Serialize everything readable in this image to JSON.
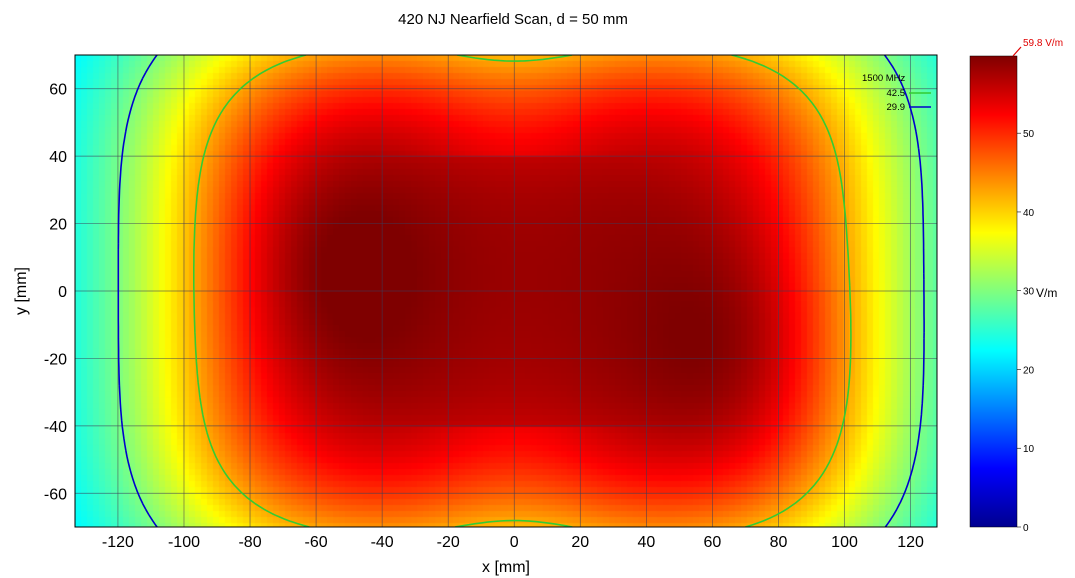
{
  "chart_data": {
    "type": "heatmap",
    "title": "420 NJ Nearfield Scan, d = 50 mm",
    "xlabel": "x [mm]",
    "ylabel": "y [mm]",
    "xlim": [
      -133,
      128
    ],
    "ylim": [
      -70,
      70
    ],
    "x_ticks": [
      "-120",
      "-100",
      "-80",
      "-60",
      "-40",
      "-20",
      "0",
      "20",
      "40",
      "60",
      "80",
      "100",
      "120"
    ],
    "y_ticks": [
      "60",
      "40",
      "20",
      "0",
      "-20",
      "-40",
      "-60"
    ],
    "grid": true,
    "field": {
      "unit": "V/m",
      "max_value": 59.8,
      "hotspots_mm": [
        [
          -60,
          5
        ],
        [
          70,
          -15
        ],
        [
          0,
          5
        ]
      ],
      "note_colormap": "jet"
    },
    "colorbar": {
      "range": [
        0,
        59.8
      ],
      "ticks": [
        "0",
        "10",
        "20",
        "30",
        "40",
        "50"
      ],
      "unit_label": "V/m",
      "max_label": "59.8 V/m",
      "colors": [
        "#00008f",
        "#0000ff",
        "#00ffff",
        "#ffff00",
        "#ff0000",
        "#800000"
      ]
    },
    "legend": {
      "placement": "top-right",
      "title": "1500 MHz",
      "entries": [
        {
          "label": "42.5",
          "color": "#33cc33",
          "level": 42.5
        },
        {
          "label": "29.9",
          "color": "#0000cc",
          "level": 29.9
        }
      ]
    }
  }
}
